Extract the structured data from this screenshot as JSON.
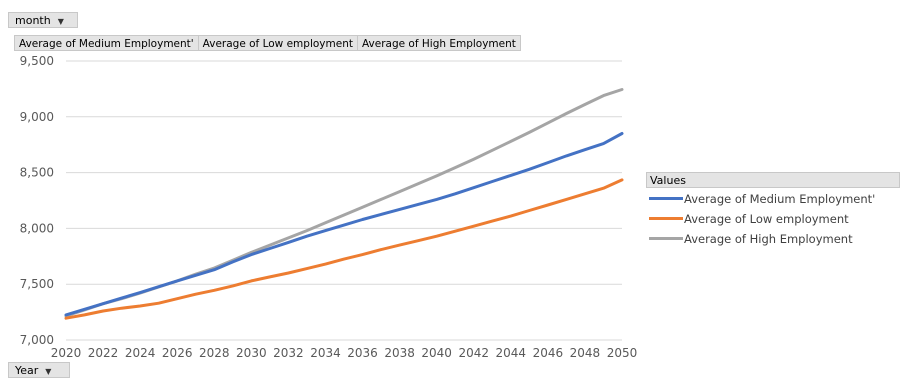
{
  "pivot": {
    "filter_button": "month",
    "axis_button": "Year",
    "value_fields": [
      "Average of Medium Employment'",
      "Average of Low employment",
      "Average of High Employment"
    ]
  },
  "legend": {
    "title": "Values"
  },
  "chart_data": {
    "type": "line",
    "x": [
      2020,
      2021,
      2022,
      2023,
      2024,
      2025,
      2026,
      2027,
      2028,
      2029,
      2030,
      2031,
      2032,
      2033,
      2034,
      2035,
      2036,
      2037,
      2038,
      2039,
      2040,
      2041,
      2042,
      2043,
      2044,
      2045,
      2046,
      2047,
      2048,
      2049,
      2050
    ],
    "x_tick_labels": [
      "2020",
      "2022",
      "2024",
      "2026",
      "2028",
      "2030",
      "2032",
      "2034",
      "2036",
      "2038",
      "2040",
      "2042",
      "2044",
      "2046",
      "2048",
      "2050"
    ],
    "y_tick_labels": [
      "7,000",
      "7,500",
      "8,000",
      "8,500",
      "9,000",
      "9,500"
    ],
    "ylim": [
      7000,
      9500
    ],
    "y_step": 500,
    "grid": true,
    "legend_position": "right",
    "series": [
      {
        "name": "Average of Medium Employment'",
        "color": "#4472c4",
        "values": [
          7225,
          7275,
          7325,
          7375,
          7425,
          7478,
          7530,
          7580,
          7630,
          7700,
          7765,
          7820,
          7875,
          7930,
          7980,
          8030,
          8080,
          8125,
          8170,
          8215,
          8260,
          8310,
          8365,
          8420,
          8475,
          8530,
          8590,
          8650,
          8705,
          8760,
          8850
        ]
      },
      {
        "name": "Average of Low employment",
        "color": "#ed7d31",
        "values": [
          7195,
          7225,
          7260,
          7285,
          7305,
          7330,
          7370,
          7410,
          7445,
          7485,
          7530,
          7565,
          7600,
          7640,
          7680,
          7725,
          7765,
          7810,
          7850,
          7890,
          7930,
          7975,
          8020,
          8065,
          8110,
          8160,
          8210,
          8260,
          8310,
          8360,
          8435
        ]
      },
      {
        "name": "Average of High Employment",
        "color": "#a5a5a5",
        "values": [
          7215,
          7270,
          7325,
          7370,
          7420,
          7475,
          7530,
          7590,
          7645,
          7715,
          7785,
          7850,
          7915,
          7980,
          8050,
          8120,
          8190,
          8260,
          8330,
          8400,
          8470,
          8545,
          8620,
          8700,
          8780,
          8860,
          8945,
          9030,
          9110,
          9190,
          9245
        ]
      }
    ]
  }
}
